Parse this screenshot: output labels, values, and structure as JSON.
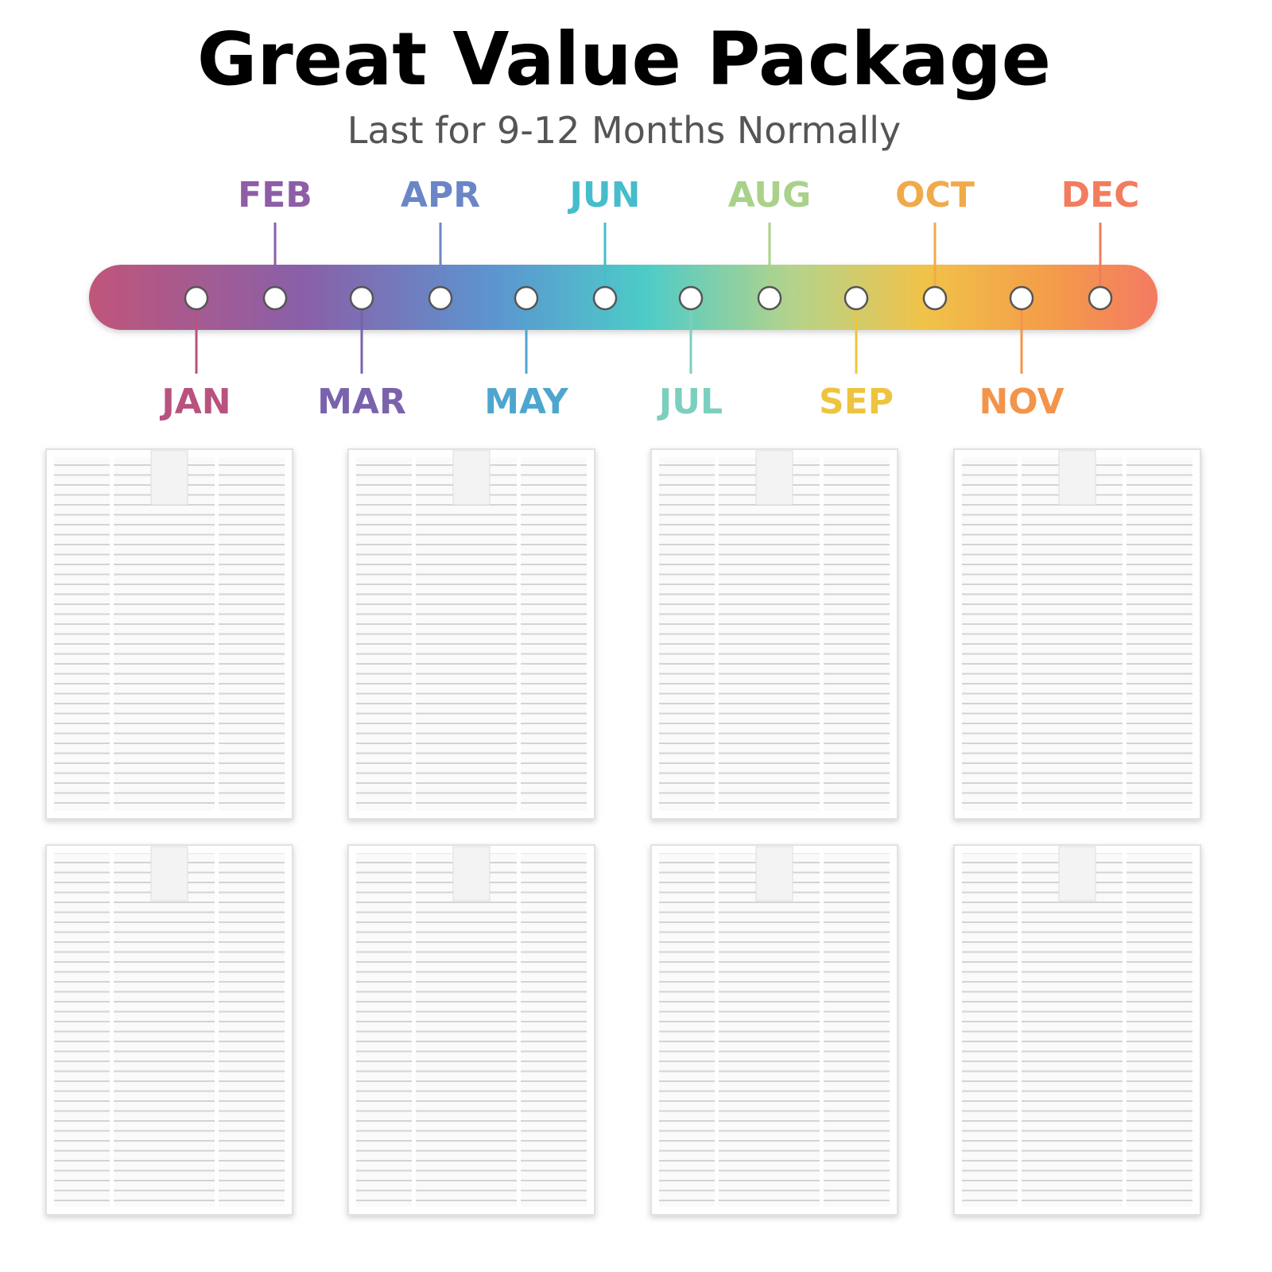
{
  "header": {
    "title": "Great Value Package",
    "subtitle": "Last for 9-12 Months Normally"
  },
  "timeline": {
    "months": [
      "JAN",
      "FEB",
      "MAR",
      "APR",
      "MAY",
      "JUN",
      "JUL",
      "AUG",
      "SEP",
      "OCT",
      "NOV",
      "DEC"
    ]
  }
}
